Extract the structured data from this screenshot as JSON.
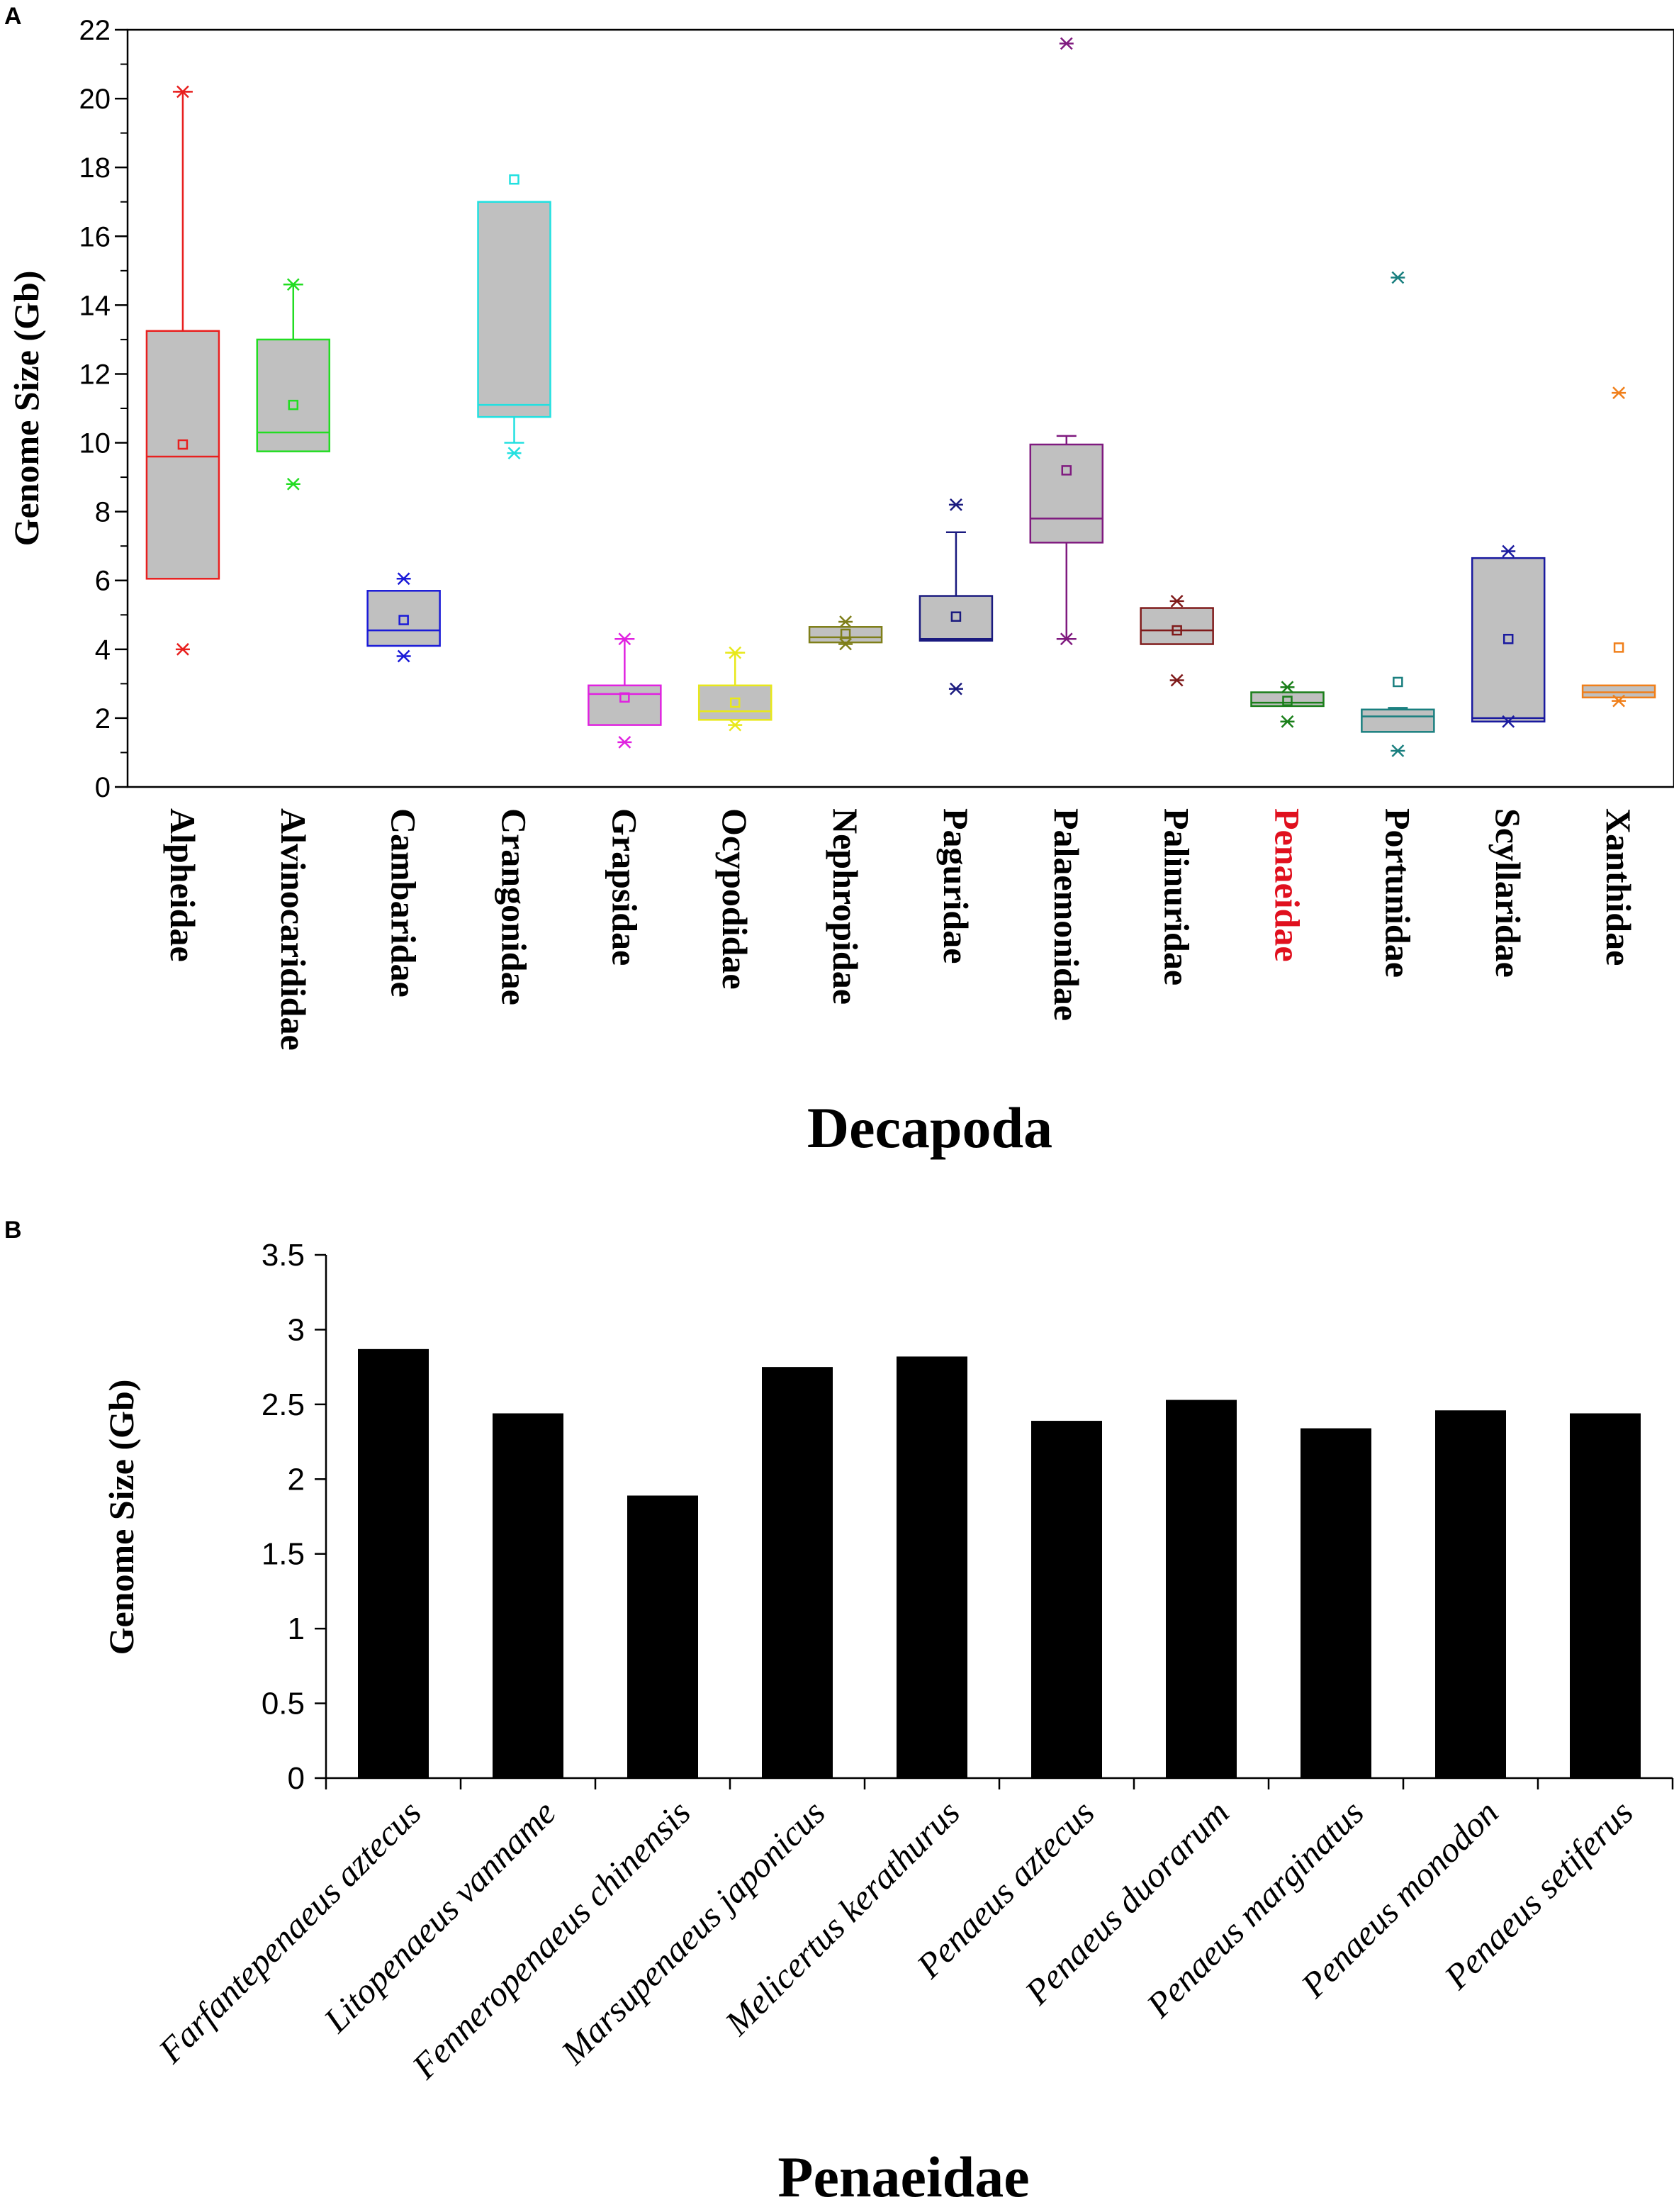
{
  "chart_data": [
    {
      "panel": "A",
      "type": "box",
      "ylabel": "Genome Size (Gb)",
      "xlabel": "Decapoda",
      "ylim": [
        0,
        22
      ],
      "yticks": [
        0,
        2,
        4,
        6,
        8,
        10,
        12,
        14,
        16,
        18,
        20,
        22
      ],
      "highlight_category": "Penaeidae",
      "highlight_color": "#e0101e",
      "box_fill": "#c0c0c0",
      "categories": [
        {
          "name": "Alpheidae",
          "color": "#e8201f",
          "q1": 6.05,
          "median": 9.6,
          "q3": 13.25,
          "mean": 9.95,
          "whisker_low": null,
          "whisker_high": 20.2,
          "minmax": [
            4.0,
            20.2
          ],
          "outliers": []
        },
        {
          "name": "Alvinocarididae",
          "color": "#22dd22",
          "q1": 9.75,
          "median": 10.3,
          "q3": 13.0,
          "mean": 11.1,
          "whisker_low": null,
          "whisker_high": 14.6,
          "minmax": [
            8.8,
            14.6
          ],
          "outliers": []
        },
        {
          "name": "Cambaridae",
          "color": "#1a1ad8",
          "q1": 4.1,
          "median": 4.55,
          "q3": 5.7,
          "mean": 4.85,
          "whisker_low": null,
          "whisker_high": null,
          "minmax": [
            3.8,
            6.05
          ],
          "outliers": []
        },
        {
          "name": "Crangonidae",
          "color": "#22e0e0",
          "q1": 10.75,
          "median": 11.1,
          "q3": 17.0,
          "mean": 17.65,
          "whisker_low": 10.0,
          "whisker_high": null,
          "minmax": [
            9.7
          ],
          "outliers": []
        },
        {
          "name": "Grapsidae",
          "color": "#e022e0",
          "q1": 1.8,
          "median": 2.7,
          "q3": 2.95,
          "mean": 2.6,
          "whisker_low": null,
          "whisker_high": 4.3,
          "minmax": [
            1.3,
            4.3
          ],
          "outliers": []
        },
        {
          "name": "Ocypodidae",
          "color": "#e8e81a",
          "q1": 1.95,
          "median": 2.2,
          "q3": 2.95,
          "mean": 2.45,
          "whisker_low": null,
          "whisker_high": 3.9,
          "minmax": [
            1.8,
            3.9
          ],
          "outliers": []
        },
        {
          "name": "Nephropidae",
          "color": "#7f7f1a",
          "q1": 4.2,
          "median": 4.35,
          "q3": 4.65,
          "mean": 4.45,
          "whisker_low": null,
          "whisker_high": null,
          "minmax": [
            4.15,
            4.8
          ],
          "outliers": []
        },
        {
          "name": "Paguridae",
          "color": "#1a1a7f",
          "q1": 4.25,
          "median": 4.3,
          "q3": 5.55,
          "mean": 4.95,
          "whisker_low": null,
          "whisker_high": 7.4,
          "minmax": [
            2.85,
            8.2
          ],
          "outliers": []
        },
        {
          "name": "Palaemonidae",
          "color": "#7f1a7f",
          "q1": 7.1,
          "median": 7.8,
          "q3": 9.95,
          "mean": 9.2,
          "whisker_low": 4.3,
          "whisker_high": 10.2,
          "minmax": [
            4.3,
            21.6
          ],
          "outliers": []
        },
        {
          "name": "Palinuridae",
          "color": "#7f1a1a",
          "q1": 4.15,
          "median": 4.55,
          "q3": 5.2,
          "mean": 4.55,
          "whisker_low": null,
          "whisker_high": null,
          "minmax": [
            3.1,
            5.4
          ],
          "outliers": []
        },
        {
          "name": "Penaeidae",
          "color": "#1a7f1a",
          "q1": 2.35,
          "median": 2.45,
          "q3": 2.75,
          "mean": 2.5,
          "whisker_low": null,
          "whisker_high": null,
          "minmax": [
            1.9,
            2.9
          ],
          "outliers": []
        },
        {
          "name": "Portunidae",
          "color": "#1a7f7f",
          "q1": 1.6,
          "median": 2.05,
          "q3": 2.25,
          "mean": 3.05,
          "whisker_low": null,
          "whisker_high": 2.3,
          "minmax": [
            1.05,
            14.8
          ],
          "outliers": []
        },
        {
          "name": "Scyllaridae",
          "color": "#1a1a9f",
          "q1": 1.9,
          "median": 2.0,
          "q3": 6.65,
          "mean": 4.3,
          "whisker_low": null,
          "whisker_high": null,
          "minmax": [
            1.9,
            6.85
          ],
          "outliers": []
        },
        {
          "name": "Xanthidae",
          "color": "#f07f1a",
          "q1": 2.6,
          "median": 2.75,
          "q3": 2.95,
          "mean": 4.05,
          "whisker_low": null,
          "whisker_high": null,
          "minmax": [
            2.5,
            11.45
          ],
          "outliers": []
        }
      ]
    },
    {
      "panel": "B",
      "type": "bar",
      "ylabel": "Genome Size (Gb)",
      "xlabel": "Penaeidae",
      "ylim": [
        0,
        3.5
      ],
      "yticks": [
        "0",
        "0.5",
        "1",
        "1.5",
        "2",
        "2.5",
        "3",
        "3.5"
      ],
      "bar_color": "#000000",
      "categories": [
        "Farfantepenaeus aztecus",
        "Litopenaeus vanname",
        "Fenneropenaeus chinensis",
        "Marsupenaeus japonicus",
        "Melicertus kerathurus",
        "Penaeus aztecus",
        "Penaeus duorarum",
        "Penaeus marginatus",
        "Penaeus monodon",
        "Penaeus setiferus"
      ],
      "values": [
        2.87,
        2.44,
        1.89,
        2.75,
        2.82,
        2.39,
        2.53,
        2.34,
        2.46,
        2.44
      ]
    }
  ]
}
